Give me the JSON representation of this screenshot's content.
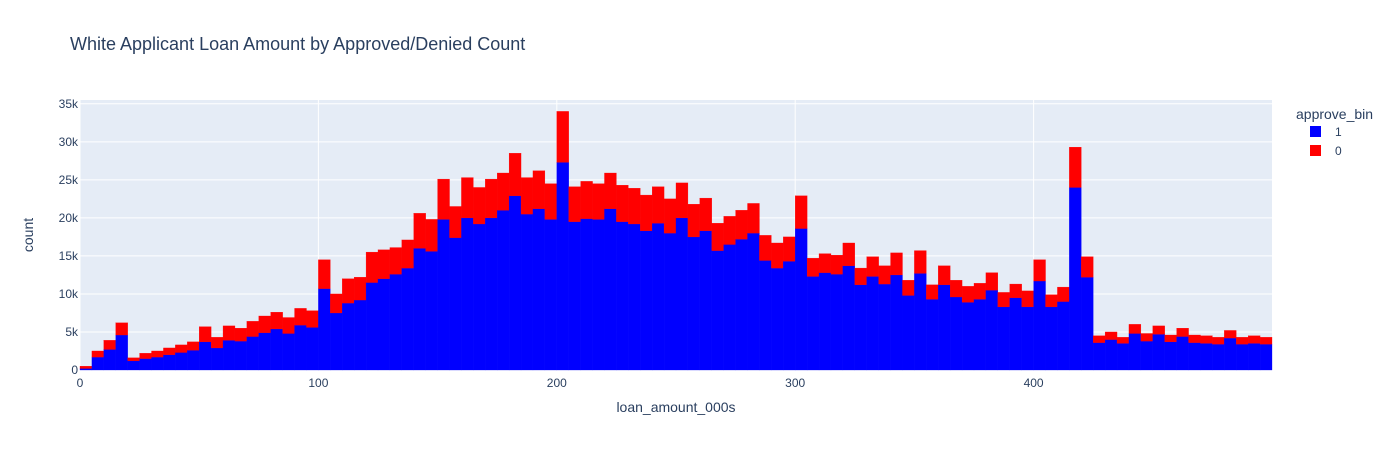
{
  "chart_data": {
    "type": "bar",
    "barmode": "stack",
    "title": "White Applicant Loan Amount by Approved/Denied Count",
    "xlabel": "loan_amount_000s",
    "ylabel": "count",
    "xlim": [
      0,
      500
    ],
    "ylim": [
      0,
      35500
    ],
    "bin_width": 5,
    "grid": true,
    "background": "#E5ECF6",
    "x_ticks": [
      0,
      100,
      200,
      300,
      400
    ],
    "x_tick_labels": [
      "0",
      "100",
      "200",
      "300",
      "400"
    ],
    "y_ticks": [
      0,
      5000,
      10000,
      15000,
      20000,
      25000,
      30000,
      35000
    ],
    "y_tick_labels": [
      "0",
      "5k",
      "10k",
      "15k",
      "20k",
      "25k",
      "30k",
      "35k"
    ],
    "legend": {
      "title": "approve_bin",
      "position": "top-right"
    },
    "bin_starts": [
      0,
      5,
      10,
      15,
      20,
      25,
      30,
      35,
      40,
      45,
      50,
      55,
      60,
      65,
      70,
      75,
      80,
      85,
      90,
      95,
      100,
      105,
      110,
      115,
      120,
      125,
      130,
      135,
      140,
      145,
      150,
      155,
      160,
      165,
      170,
      175,
      180,
      185,
      190,
      195,
      200,
      205,
      210,
      215,
      220,
      225,
      230,
      235,
      240,
      245,
      250,
      255,
      260,
      265,
      270,
      275,
      280,
      285,
      290,
      295,
      300,
      305,
      310,
      315,
      320,
      325,
      330,
      335,
      340,
      345,
      350,
      355,
      360,
      365,
      370,
      375,
      380,
      385,
      390,
      395,
      400,
      405,
      410,
      415,
      420,
      425,
      430,
      435,
      440,
      445,
      450,
      455,
      460,
      465,
      470,
      475,
      480,
      485,
      490,
      495
    ],
    "series": [
      {
        "name": "1",
        "color": "#0000FF",
        "values": [
          200,
          1700,
          2700,
          4600,
          1200,
          1500,
          1700,
          2000,
          2300,
          2600,
          3700,
          2900,
          3900,
          3800,
          4400,
          4900,
          5400,
          4800,
          5900,
          5600,
          10700,
          7500,
          8800,
          9200,
          11500,
          12000,
          12600,
          13400,
          16000,
          15600,
          19800,
          17400,
          20000,
          19200,
          20000,
          21000,
          22900,
          20500,
          21200,
          19800,
          27300,
          19500,
          19900,
          19800,
          21200,
          19500,
          19200,
          18300,
          19300,
          18000,
          20000,
          17500,
          18300,
          15700,
          16500,
          17200,
          18000,
          14400,
          13400,
          14300,
          18600,
          12300,
          12800,
          12600,
          13700,
          11200,
          12300,
          11300,
          12500,
          9800,
          12700,
          9300,
          11200,
          9600,
          8900,
          9300,
          10500,
          8300,
          9500,
          8300,
          11700,
          8300,
          9000,
          24000,
          12200,
          3600,
          4000,
          3500,
          4800,
          3800,
          4700,
          3700,
          4400,
          3600,
          3500,
          3400,
          4200,
          3400,
          3500,
          3400
        ]
      },
      {
        "name": "0",
        "color": "#FF0000",
        "values": [
          300,
          800,
          1200,
          1600,
          400,
          700,
          800,
          900,
          1000,
          1100,
          2000,
          1400,
          1900,
          1700,
          2000,
          2200,
          2200,
          2100,
          2200,
          2200,
          3800,
          2500,
          3200,
          3000,
          4000,
          3800,
          3500,
          3700,
          4600,
          4200,
          5300,
          4100,
          5300,
          4800,
          5100,
          4900,
          5600,
          4800,
          5000,
          4700,
          6700,
          4600,
          4900,
          4700,
          4700,
          4800,
          4700,
          4700,
          4800,
          4500,
          4600,
          4300,
          4300,
          3600,
          3700,
          3800,
          3900,
          3300,
          3300,
          3200,
          4300,
          2400,
          2500,
          2500,
          3000,
          2200,
          2600,
          2400,
          2900,
          2000,
          3000,
          1900,
          2500,
          2200,
          2100,
          2100,
          2300,
          1900,
          1800,
          2100,
          2800,
          1600,
          1900,
          5300,
          2700,
          900,
          1000,
          800,
          1200,
          1000,
          1100,
          900,
          1100,
          1000,
          1000,
          900,
          1000,
          900,
          1000,
          900
        ]
      }
    ]
  }
}
